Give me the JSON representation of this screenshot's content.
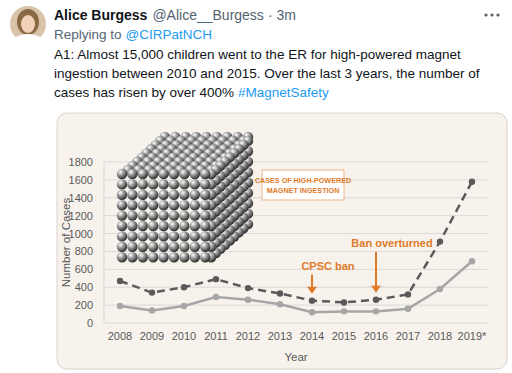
{
  "tweet": {
    "name": "Alice Burgess",
    "handle": "@Alice__Burgess",
    "separator": "·",
    "time": "3m",
    "reply_prefix": "Replying to",
    "replying_to": "@CIRPatNCH",
    "text": "A1: Almost 15,000 children went to the ER for high-powered magnet ingestion between 2010 and 2015. Over the last 3 years, the number of cases has risen by over 400%",
    "hashtag": "#MagnetSafety"
  },
  "chart_data": {
    "type": "line",
    "x_label": "Year",
    "y_label": "Number of Cases",
    "inset_label": [
      "CASES OF HIGH-POWERED",
      "MAGNET INGESTION"
    ],
    "annotations": [
      {
        "text": "CPSC ban",
        "x": "2014"
      },
      {
        "text": "Ban overturned",
        "x": "2016"
      }
    ],
    "categories": [
      "2008",
      "2009",
      "2010",
      "2011",
      "2012",
      "2013",
      "2014",
      "2015",
      "2016",
      "2017",
      "2018",
      "2019*"
    ],
    "series": [
      {
        "color": "#5a5a5a",
        "line_style": "dashed",
        "marker": "circle",
        "values": [
          470,
          340,
          400,
          490,
          390,
          330,
          250,
          230,
          260,
          320,
          910,
          1580
        ]
      },
      {
        "color": "#a6a6a6",
        "line_style": "solid",
        "marker": "circle",
        "values": [
          190,
          140,
          190,
          290,
          260,
          210,
          120,
          130,
          130,
          160,
          380,
          690
        ]
      }
    ],
    "ylim": [
      0,
      1800
    ],
    "yticks": [
      0,
      200,
      400,
      600,
      800,
      1000,
      1200,
      1400,
      1600,
      1800
    ],
    "grid": true
  }
}
